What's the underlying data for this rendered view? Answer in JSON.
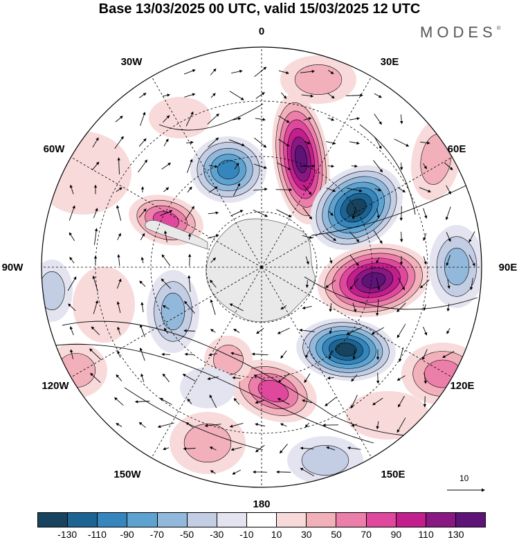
{
  "title": "Base 13/03/2025 00 UTC, valid 15/03/2025 12 UTC",
  "brand": "MODES",
  "brand_mark": "®",
  "longitude_labels": {
    "0": "0",
    "30E": "30E",
    "60E": "60E",
    "90E": "90E",
    "120E": "120E",
    "150E": "150E",
    "180": "180",
    "150W": "150W",
    "120W": "120W",
    "90W": "90W",
    "60W": "60W",
    "30W": "30W"
  },
  "colorbar": {
    "colors": [
      "#18435e",
      "#1e6492",
      "#3586bd",
      "#5ea3cf",
      "#92b9db",
      "#c3cde4",
      "#e3e4f0",
      "#ffffff",
      "#f8dadb",
      "#f2b0bb",
      "#ec7faa",
      "#e0489e",
      "#c21f8c",
      "#8a1883",
      "#5e1377"
    ],
    "tick_labels": [
      "-130",
      "-110",
      "-90",
      "-70",
      "-50",
      "-30",
      "-10",
      "10",
      "30",
      "50",
      "70",
      "90",
      "110",
      "130"
    ]
  },
  "vector_reference": {
    "label": "10"
  },
  "colors": {
    "land": "#e9e9e9",
    "coast": "#555555"
  }
}
